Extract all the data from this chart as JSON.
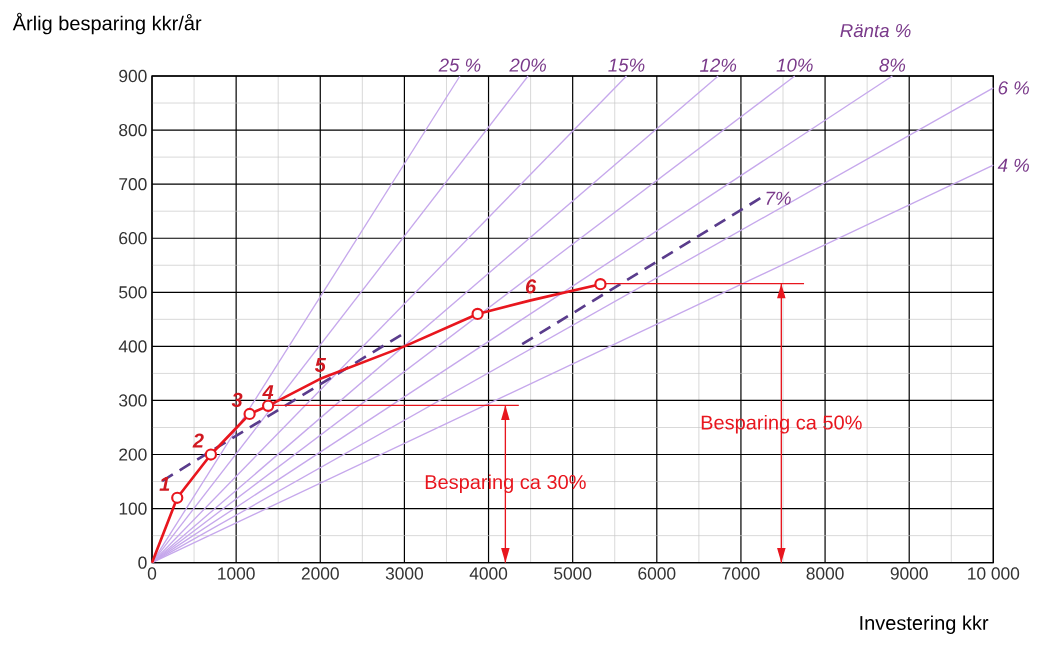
{
  "chart_data": {
    "type": "line",
    "xlabel": "Investering kkr",
    "ylabel": "Årlig besparing kkr/år",
    "xlim": [
      0,
      10000
    ],
    "ylim": [
      0,
      900
    ],
    "xticks": [
      0,
      1000,
      2000,
      3000,
      4000,
      5000,
      6000,
      7000,
      8000,
      9000,
      {
        "value": 10000,
        "label": "10 000"
      }
    ],
    "yticks": [
      0,
      100,
      200,
      300,
      400,
      500,
      600,
      700,
      800,
      900
    ],
    "grid": true,
    "series": [
      {
        "name": "25 %",
        "color": "#c6a8ec",
        "x": [
          0,
          3660
        ],
        "values": [
          0,
          900
        ]
      },
      {
        "name": "20%",
        "color": "#c6a8ec",
        "x": [
          0,
          4470
        ],
        "values": [
          0,
          900
        ]
      },
      {
        "name": "15%",
        "color": "#c6a8ec",
        "x": [
          0,
          5640
        ],
        "values": [
          0,
          900
        ]
      },
      {
        "name": "12%",
        "color": "#c6a8ec",
        "x": [
          0,
          6730
        ],
        "values": [
          0,
          900
        ]
      },
      {
        "name": "10%",
        "color": "#c6a8ec",
        "x": [
          0,
          7640
        ],
        "values": [
          0,
          900
        ]
      },
      {
        "name": "8%",
        "color": "#c6a8ec",
        "x": [
          0,
          8800
        ],
        "values": [
          0,
          900
        ]
      },
      {
        "name": "6 %",
        "color": "#c6a8ec",
        "x": [
          0,
          10000
        ],
        "values": [
          0,
          878
        ]
      },
      {
        "name": "4 %",
        "color": "#c6a8ec",
        "x": [
          0,
          10000
        ],
        "values": [
          0,
          735
        ]
      },
      {
        "color": "#5a3c8c",
        "line_style": "dashed",
        "x": [
          120,
          2960
        ],
        "values": [
          151,
          421
        ]
      },
      {
        "name": "7%",
        "color": "#5a3c8c",
        "line_style": "dashed",
        "x": [
          4400,
          7230
        ],
        "values": [
          404,
          674
        ]
      },
      {
        "color": "#e8161e",
        "x": [
          0,
          300,
          700,
          1160,
          1380,
          2000,
          3000,
          3870,
          4500,
          5330
        ],
        "values": [
          0,
          120,
          200,
          275,
          290,
          340,
          400,
          460,
          485,
          515
        ]
      },
      {
        "type": "scatter",
        "marker": "circle",
        "color": "#e8161e",
        "x": [
          300,
          700,
          1160,
          1380,
          3870,
          5330
        ],
        "values": [
          120,
          200,
          275,
          290,
          460,
          515
        ]
      },
      {
        "color": "#e8161e",
        "x": [
          1380,
          4360
        ],
        "values": [
          291,
          291
        ]
      },
      {
        "color": "#e8161e",
        "x": [
          5330,
          7750
        ],
        "values": [
          516,
          516
        ]
      },
      {
        "color": "#e8161e",
        "x": [
          4200,
          4200
        ],
        "values": [
          0,
          291
        ]
      },
      {
        "color": "#e8161e",
        "x": [
          7480,
          7480
        ],
        "values": [
          0,
          516
        ]
      }
    ],
    "annotations": [
      "Ränta %",
      {
        "text": "1",
        "x": 300,
        "y": 120
      },
      {
        "text": "2",
        "x": 700,
        "y": 200
      },
      {
        "text": "3",
        "x": 1160,
        "y": 275
      },
      {
        "text": "4",
        "x": 1380,
        "y": 290
      },
      {
        "text": "5",
        "x": 2000,
        "y": 340
      },
      {
        "text": "6",
        "x": 4500,
        "y": 485
      },
      {
        "text": "Besparing ca 30%",
        "x": 4200,
        "y": 146
      },
      {
        "text": "Besparing ca 50%",
        "x": 7480,
        "y": 256
      }
    ]
  }
}
